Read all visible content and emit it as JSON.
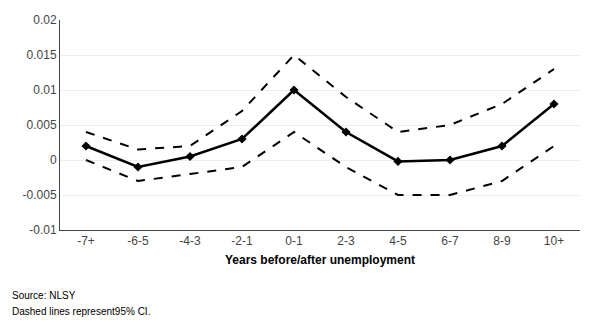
{
  "chart_data": {
    "type": "line",
    "x_label": "Years before/after unemployment",
    "annotations": [
      "Source: NLSY",
      "Dashed lines represent95% CI."
    ],
    "categories": [
      "-7+",
      "-6-5",
      "-4-3",
      "-2-1",
      "0-1",
      "2-3",
      "4-5",
      "6-7",
      "8-9",
      "10+"
    ],
    "series": [
      {
        "color": "#000000",
        "line_style": "dashed",
        "values": [
          0.004,
          0.0015,
          0.002,
          0.007,
          0.015,
          0.009,
          0.004,
          0.005,
          0.008,
          0.013
        ]
      },
      {
        "color": "#000000",
        "line_style": "dashed",
        "values": [
          0.0,
          -0.003,
          -0.002,
          -0.001,
          0.004,
          -0.001,
          -0.005,
          -0.005,
          -0.003,
          0.002
        ]
      },
      {
        "color": "#000000",
        "line_style": "solid",
        "marker": "diamond",
        "values": [
          0.002,
          -0.001,
          0.0005,
          0.003,
          0.01,
          0.004,
          -0.0002,
          0.0,
          0.002,
          0.008
        ]
      }
    ],
    "ylim": [
      -0.01,
      0.02
    ],
    "yticks": [
      -0.01,
      -0.005,
      0,
      0.005,
      0.01,
      0.015,
      0.02
    ],
    "grid": true
  }
}
